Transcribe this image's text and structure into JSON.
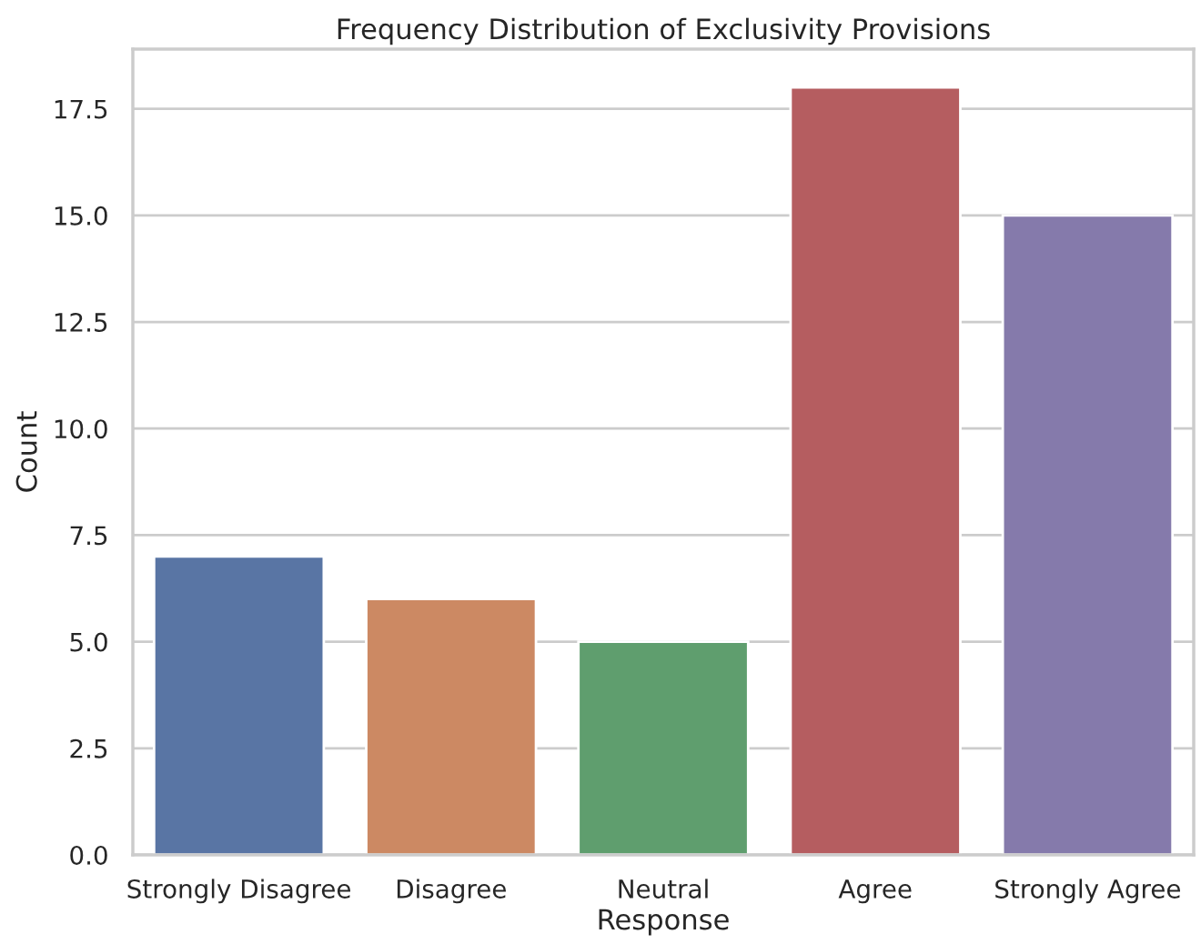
{
  "chart_data": {
    "type": "bar",
    "title": "Frequency Distribution of Exclusivity Provisions",
    "xlabel": "Response",
    "ylabel": "Count",
    "categories": [
      "Strongly Disagree",
      "Disagree",
      "Neutral",
      "Agree",
      "Strongly Agree"
    ],
    "values": [
      7,
      6,
      5,
      18,
      15
    ],
    "colors": [
      "#5975a4",
      "#cc8963",
      "#5f9e6e",
      "#b55d60",
      "#857aab"
    ],
    "ylim": [
      0,
      18.9
    ],
    "yticks": [
      {
        "value": 0,
        "label": "0.0"
      },
      {
        "value": 2.5,
        "label": "2.5"
      },
      {
        "value": 5,
        "label": "5.0"
      },
      {
        "value": 7.5,
        "label": "7.5"
      },
      {
        "value": 10,
        "label": "10.0"
      },
      {
        "value": 12.5,
        "label": "12.5"
      },
      {
        "value": 15,
        "label": "15.0"
      },
      {
        "value": 17.5,
        "label": "17.5"
      }
    ],
    "grid": "y"
  }
}
